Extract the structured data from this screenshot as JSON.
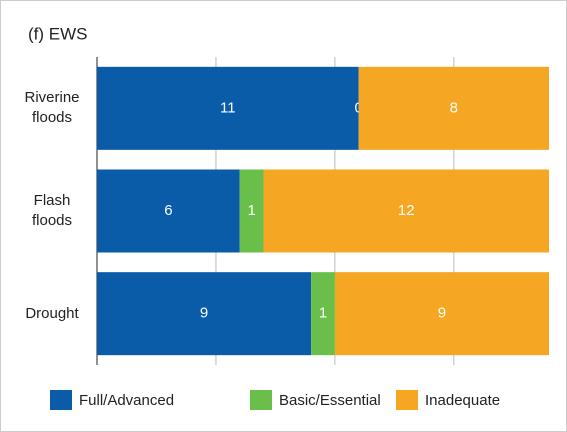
{
  "chart_data": {
    "type": "stacked-barh",
    "title": "(f) EWS",
    "categories": [
      "Riverine floods",
      "Flash floods",
      "Drought"
    ],
    "series": [
      {
        "name": "Full/Advanced",
        "color": "#0a5ba8",
        "values": [
          11,
          6,
          9
        ]
      },
      {
        "name": "Basic/Essential",
        "color": "#6abf4b",
        "values": [
          0,
          1,
          1
        ]
      },
      {
        "name": "Inadequate",
        "color": "#f5a623",
        "values": [
          8,
          12,
          9
        ]
      }
    ],
    "xlim": [
      0,
      19
    ],
    "xticks": [
      0,
      5,
      10,
      15
    ],
    "grid": true
  }
}
